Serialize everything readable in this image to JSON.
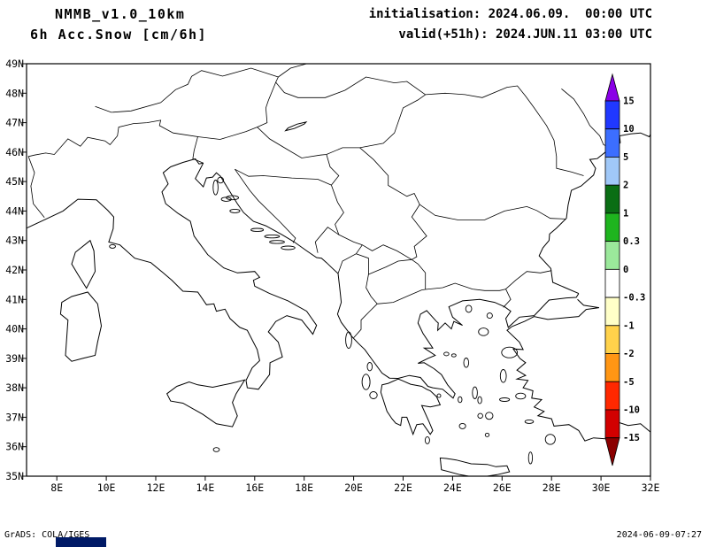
{
  "header": {
    "model": "NMMB_v1.0_10km",
    "field": "6h Acc.Snow [cm/6h]",
    "init_line": "initialisation: 2024.06.09.  00:00 UTC",
    "valid_line": "valid(+51h): 2024.JUN.11 03:00 UTC"
  },
  "map": {
    "x_tick_labels": [
      "8E",
      "10E",
      "12E",
      "14E",
      "16E",
      "18E",
      "20E",
      "22E",
      "24E",
      "26E",
      "28E",
      "30E",
      "32E"
    ],
    "x_tick_lons": [
      8,
      10,
      12,
      14,
      16,
      18,
      20,
      22,
      24,
      26,
      28,
      30,
      32
    ],
    "y_tick_labels": [
      "49N",
      "48N",
      "47N",
      "46N",
      "45N",
      "44N",
      "43N",
      "42N",
      "41N",
      "40N",
      "39N",
      "38N",
      "37N",
      "36N",
      "35N"
    ],
    "y_tick_lats": [
      49,
      48,
      47,
      46,
      45,
      44,
      43,
      42,
      41,
      40,
      39,
      38,
      37,
      36,
      35
    ],
    "line_color": "#000000",
    "background_color": "#ffffff"
  },
  "colorbar": {
    "levels_top_to_bottom": [
      "15",
      "10",
      "5",
      "2",
      "1",
      "0.3",
      "0",
      "-0.3",
      "-1",
      "-2",
      "-5",
      "-10",
      "-15"
    ],
    "colors_top_to_bottom": [
      "#8a00e6",
      "#2038ff",
      "#3c6eff",
      "#a0c8f8",
      "#0a6e14",
      "#1eb41e",
      "#9be89b",
      "#ffffff",
      "#ffffc8",
      "#ffd24b",
      "#ff9614",
      "#ff2800",
      "#d20000",
      "#8b0000"
    ]
  },
  "footer": {
    "credit": "GrADS: COLA/IGES",
    "timestamp": "2024-06-09-07:27"
  },
  "misc": {
    "corner_box_color": "#001a66"
  }
}
